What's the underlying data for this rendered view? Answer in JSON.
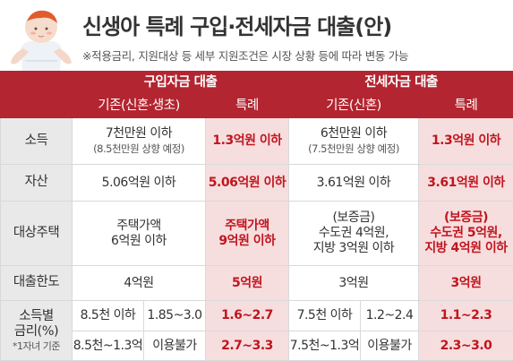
{
  "title": "신생아 특례 구입·전세자금 대출(안)",
  "subtitle": "※적용금리, 지원대상 등 세부 지원조건은 시장 상황 등에 따라 변동 가능",
  "sections": {
    "purchase": "구입자금 대출",
    "lease": "전세자금 대출"
  },
  "subheaders": {
    "purchase_standard": "기존(신혼·생초)",
    "purchase_special": "특례",
    "lease_standard": "기존(신혼)",
    "lease_special": "특례"
  },
  "rows": {
    "income": {
      "label": "소득",
      "purchase_standard": "7천만원 이하",
      "purchase_standard_note": "(8.5천만원 상향 예정)",
      "purchase_special": "1.3억원 이하",
      "lease_standard": "6천만원 이하",
      "lease_standard_note": "(7.5천만원 상향 예정)",
      "lease_special": "1.3억원 이하"
    },
    "assets": {
      "label": "자산",
      "purchase_standard": "5.06억원 이하",
      "purchase_special": "5.06억원 이하",
      "lease_standard": "3.61억원 이하",
      "lease_special": "3.61억원 이하"
    },
    "housing": {
      "label": "대상주택",
      "purchase_standard_1": "주택가액",
      "purchase_standard_2": "6억원 이하",
      "purchase_special_1": "주택가액",
      "purchase_special_2": "9억원 이하",
      "lease_standard_1": "(보증금)",
      "lease_standard_2": "수도권 4억원,",
      "lease_standard_3": "지방 3억원 이하",
      "lease_special_1": "(보증금)",
      "lease_special_2": "수도권 5억원,",
      "lease_special_3": "지방 4억원 이하"
    },
    "limit": {
      "label": "대출한도",
      "purchase_standard": "4억원",
      "purchase_special": "5억원",
      "lease_standard": "3억원",
      "lease_special": "3억원"
    },
    "rate": {
      "label_1": "소득별",
      "label_2": "금리(%)",
      "label_3": "*1자녀 기준",
      "r1": {
        "purchase_income": "8.5천 이하",
        "purchase_rate": "1.85~3.0",
        "purchase_special": "1.6~2.7",
        "lease_income": "7.5천 이하",
        "lease_rate": "1.2~2.4",
        "lease_special": "1.1~2.3"
      },
      "r2": {
        "purchase_income": "8.5천~1.3억",
        "purchase_rate": "이용불가",
        "purchase_special": "2.7~3.3",
        "lease_income": "7.5천~1.3억",
        "lease_rate": "이용불가",
        "lease_special": "2.3~3.0"
      }
    }
  },
  "colors": {
    "accent": "#b32530",
    "special_bg": "#f7dede",
    "special_text": "#c0151f",
    "row_header_bg": "#e9e9e9"
  }
}
